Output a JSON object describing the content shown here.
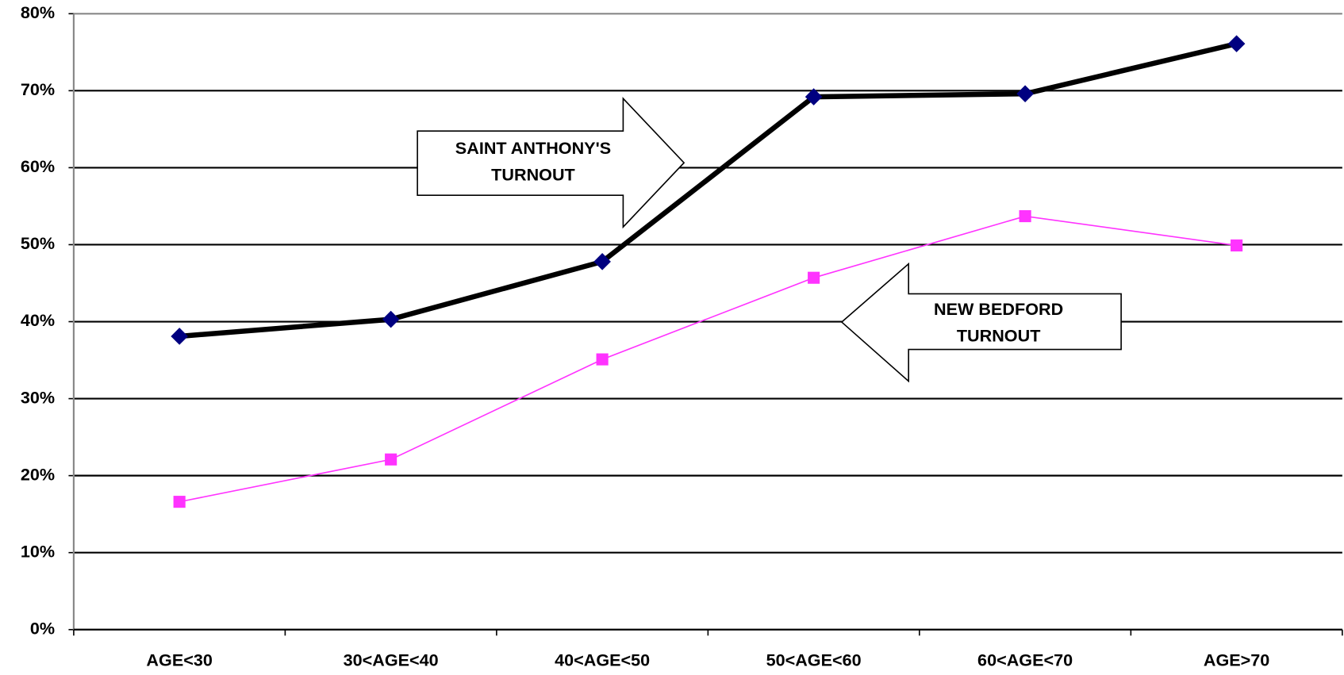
{
  "chart_data": {
    "type": "line",
    "categories": [
      "AGE<30",
      "30<AGE<40",
      "40<AGE<50",
      "50<AGE<60",
      "60<AGE<70",
      "AGE>70"
    ],
    "series": [
      {
        "name": "SAINT ANTHONY'S",
        "color": "#000000",
        "marker_color": "#000080",
        "marker": "diamond",
        "values": [
          38.1,
          40.3,
          47.8,
          69.2,
          69.6,
          76.1
        ]
      },
      {
        "name": "NEW BEDFORD",
        "color": "#ff33ff",
        "marker_color": "#ff33ff",
        "marker": "square",
        "values": [
          16.6,
          22.1,
          35.1,
          45.7,
          53.7,
          49.9
        ]
      }
    ],
    "ylim": [
      0,
      80
    ],
    "yticks": [
      {
        "value": 0,
        "label": "0%"
      },
      {
        "value": 10,
        "label": "10%"
      },
      {
        "value": 20,
        "label": "20%"
      },
      {
        "value": 30,
        "label": "30%"
      },
      {
        "value": 40,
        "label": "40%"
      },
      {
        "value": 50,
        "label": "50%"
      },
      {
        "value": 60,
        "label": "60%"
      },
      {
        "value": 70,
        "label": "70%"
      },
      {
        "value": 80,
        "label": "80%"
      }
    ],
    "grid": true,
    "annotations": [
      {
        "lines": [
          "SAINT ANTHONY'S",
          "TURNOUT"
        ],
        "direction": "right"
      },
      {
        "lines": [
          "NEW BEDFORD",
          "TURNOUT"
        ],
        "direction": "left"
      }
    ]
  }
}
